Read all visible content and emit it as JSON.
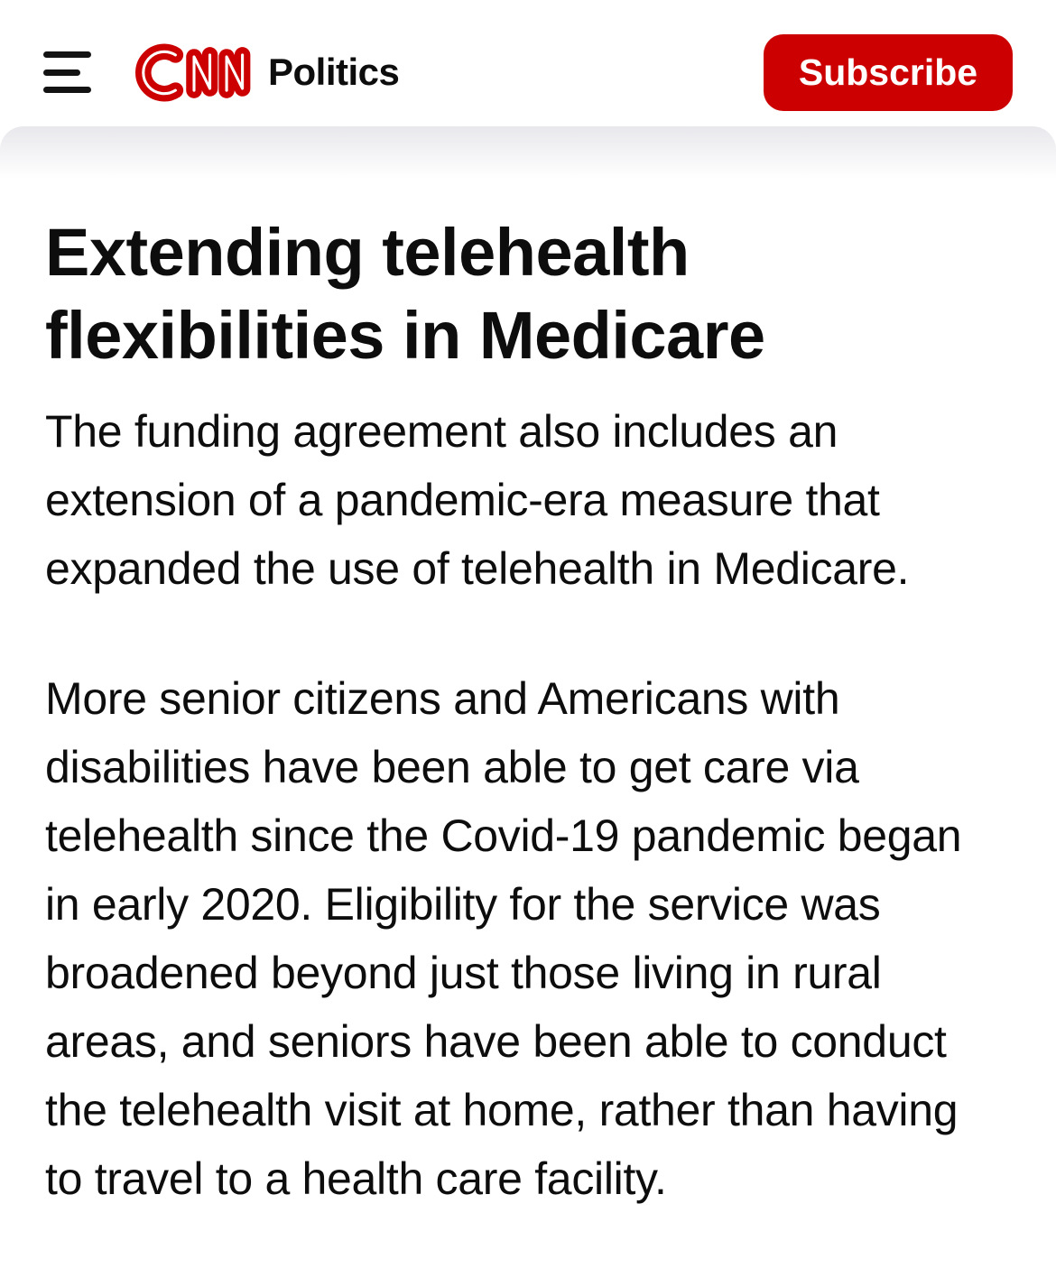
{
  "header": {
    "menu_icon": "hamburger-icon",
    "logo": {
      "name": "cnn-logo-icon",
      "alt_text": "CNN",
      "color": "#CC0000"
    },
    "section_label": "Politics",
    "subscribe_button": {
      "label": "Subscribe",
      "background": "#CC0000",
      "text_color": "#FFFFFF"
    }
  },
  "colors": {
    "brand_red": "#CC0000",
    "text": "#0D0D0D",
    "header_background": "#FFFFFF",
    "sheet_shadow_tint": "#E8E8EC"
  },
  "article": {
    "headline_lines": [
      "Extending telehealth",
      "flexibilities in Medicare"
    ],
    "headline_text": "Extending telehealth flexibilities in Medicare",
    "paragraphs": [
      {
        "text": "The funding agreement also includes an extension of a pandemic-era measure that expanded the use of telehealth in Medicare.",
        "lines": [
          "The funding agreement also includes an",
          "extension of a pandemic-era measure that",
          "expanded the use of telehealth in Medicare."
        ]
      },
      {
        "text": "More senior citizens and Americans with disabilities have been able to get care via telehealth since the Covid-19 pandemic began in early 2020. Eligibility for the service was broadened beyond just those living in rural areas, and seniors have been able to conduct the telehealth visit at home, rather than having to travel to a health care facility.",
        "lines": [
          "More senior citizens and Americans with",
          "disabilities have been able to get care via",
          "telehealth since the Covid-19 pandemic began",
          "in early 2020. Eligibility for the service was",
          "broadened beyond just those living in rural",
          "areas, and seniors have been able to conduct",
          "the telehealth visit at home, rather than having",
          "to travel to a health care facility."
        ]
      }
    ]
  }
}
